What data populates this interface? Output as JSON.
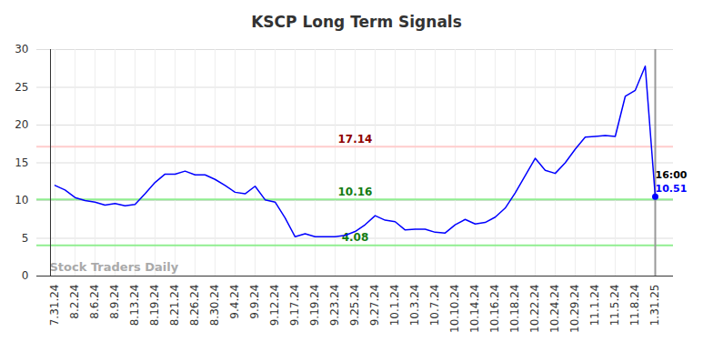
{
  "chart_data": {
    "type": "line",
    "title": "KSCP Long Term Signals",
    "categories": [
      "7.31.24",
      null,
      "8.2.24",
      null,
      "8.6.24",
      null,
      "8.9.24",
      null,
      "8.13.24",
      null,
      "8.19.24",
      null,
      "8.21.24",
      null,
      "8.26.24",
      null,
      "8.30.24",
      null,
      "9.4.24",
      null,
      "9.9.24",
      null,
      "9.12.24",
      null,
      "9.17.24",
      null,
      "9.19.24",
      null,
      "9.23.24",
      null,
      "9.25.24",
      null,
      "9.27.24",
      null,
      "10.1.24",
      null,
      "10.3.24",
      null,
      "10.7.24",
      null,
      "10.10.24",
      null,
      "10.14.24",
      null,
      "10.16.24",
      null,
      "10.18.24",
      null,
      "10.22.24",
      null,
      "10.24.24",
      null,
      "10.29.24",
      null,
      "11.1.24",
      null,
      "11.5.24",
      null,
      "11.8.24",
      null,
      "1.31.25"
    ],
    "series": [
      {
        "name": "KSCP",
        "color": "#0000ff",
        "values": [
          12.0,
          11.4,
          10.4,
          10.0,
          9.8,
          9.4,
          9.6,
          9.3,
          9.5,
          10.9,
          12.4,
          13.5,
          13.5,
          13.9,
          13.4,
          13.4,
          12.8,
          12.0,
          11.1,
          10.9,
          11.9,
          10.1,
          9.8,
          7.7,
          5.2,
          5.6,
          5.2,
          5.2,
          5.2,
          5.4,
          5.9,
          6.8,
          8.0,
          7.4,
          7.2,
          6.1,
          6.2,
          6.2,
          5.8,
          5.7,
          6.8,
          7.5,
          6.9,
          7.1,
          7.8,
          9.0,
          11.0,
          13.3,
          15.6,
          14.0,
          13.6,
          15.0,
          16.8,
          18.4,
          18.5,
          18.6,
          18.5,
          23.8,
          24.6,
          27.8,
          10.51
        ]
      }
    ],
    "reference_lines": [
      {
        "value": 17.14,
        "color": "#ffcccc"
      },
      {
        "value": 10.16,
        "color": "#90ee90"
      },
      {
        "value": 4.08,
        "color": "#90ee90"
      }
    ],
    "annotations": {
      "end_time": "16:00",
      "watermark": "Stock Traders Daily"
    },
    "ylim": [
      0,
      30
    ],
    "yticks": [
      0,
      5,
      10,
      15,
      20,
      25,
      30
    ],
    "grid": true
  }
}
